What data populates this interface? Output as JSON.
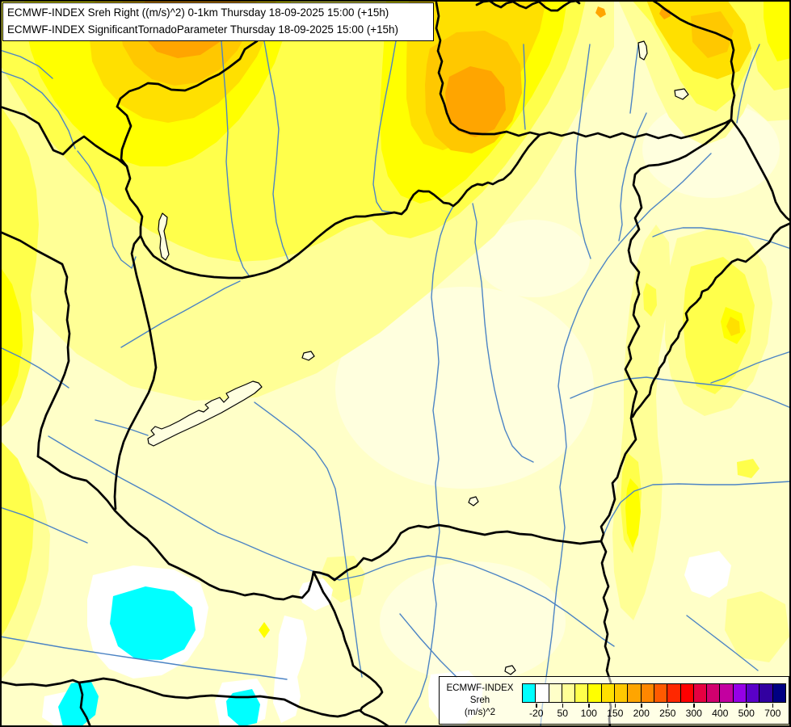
{
  "title_box": {
    "line1": "ECMWF-INDEX Sreh Right ((m/s)^2) 0-1km Thursday 18-09-2025 15:00 (+15h)",
    "line2": "ECMWF-INDEX SignificantTornadoParameter Thursday 18-09-2025 15:00 (+15h)"
  },
  "legend": {
    "model": "ECMWF-INDEX",
    "parameter": "Sreh",
    "units": "(m/s)^2",
    "swatches": [
      "#00FFFF",
      "#FFFFFF",
      "#FFFFC8",
      "#FFFF96",
      "#FFFF4B",
      "#FFFF00",
      "#FFE000",
      "#FFC800",
      "#FFA500",
      "#FF8700",
      "#FF5A00",
      "#FF2800",
      "#FF0000",
      "#E60041",
      "#D2006E",
      "#C300A0",
      "#9600E6",
      "#5A00C8",
      "#3200A0",
      "#000082"
    ],
    "ticks": [
      {
        "label": "-20",
        "boundary": 1
      },
      {
        "label": "50",
        "boundary": 3
      },
      {
        "label": "100",
        "boundary": 5
      },
      {
        "label": "150",
        "boundary": 7
      },
      {
        "label": "200",
        "boundary": 9
      },
      {
        "label": "250",
        "boundary": 11
      },
      {
        "label": "300",
        "boundary": 13
      },
      {
        "label": "400",
        "boundary": 15
      },
      {
        "label": "500",
        "boundary": 17
      },
      {
        "label": "700",
        "boundary": 19
      }
    ]
  },
  "map": {
    "background_color": "#FFFFC8",
    "border_color": "#000000",
    "river_color": "#4C84C4",
    "lake_fill_color": "#FFFFE0",
    "negative_area_color": "#00FFFF",
    "shade_levels": [
      "#FFFFDE",
      "#FFFF96",
      "#FFFF4B",
      "#FFFF00",
      "#FFE000",
      "#FFC800",
      "#FFA500"
    ]
  }
}
